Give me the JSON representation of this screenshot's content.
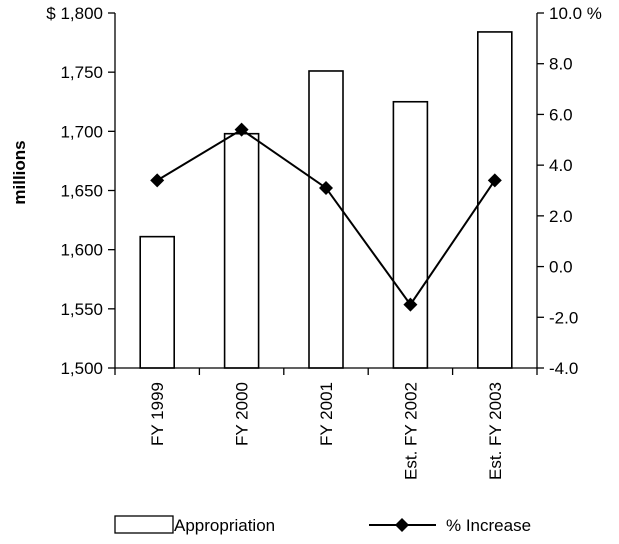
{
  "chart_data": {
    "type": "bar",
    "categories": [
      "FY 1999",
      "FY 2000",
      "FY 2001",
      "Est. FY 2002",
      "Est. FY 2003"
    ],
    "series": [
      {
        "name": "Appropriation",
        "type": "bar",
        "axis": "left",
        "values": [
          1611,
          1698,
          1751,
          1725,
          1784
        ]
      },
      {
        "name": "% Increase",
        "type": "line",
        "axis": "right",
        "values": [
          3.4,
          5.4,
          3.1,
          -1.5,
          3.4
        ]
      }
    ],
    "ylabel": "millions",
    "ylim": [
      1500,
      1800
    ],
    "y_ticks": [
      "$ 1,800",
      "1,750",
      "1,700",
      "1,650",
      "1,600",
      "1,550",
      "1,500"
    ],
    "y2lim": [
      -4.0,
      10.0
    ],
    "y2_ticks": [
      "10.0 %",
      "8.0",
      "6.0",
      "4.0",
      "2.0",
      "0.0",
      "-2.0",
      "-4.0"
    ],
    "grid": false,
    "legend_position": "bottom"
  }
}
